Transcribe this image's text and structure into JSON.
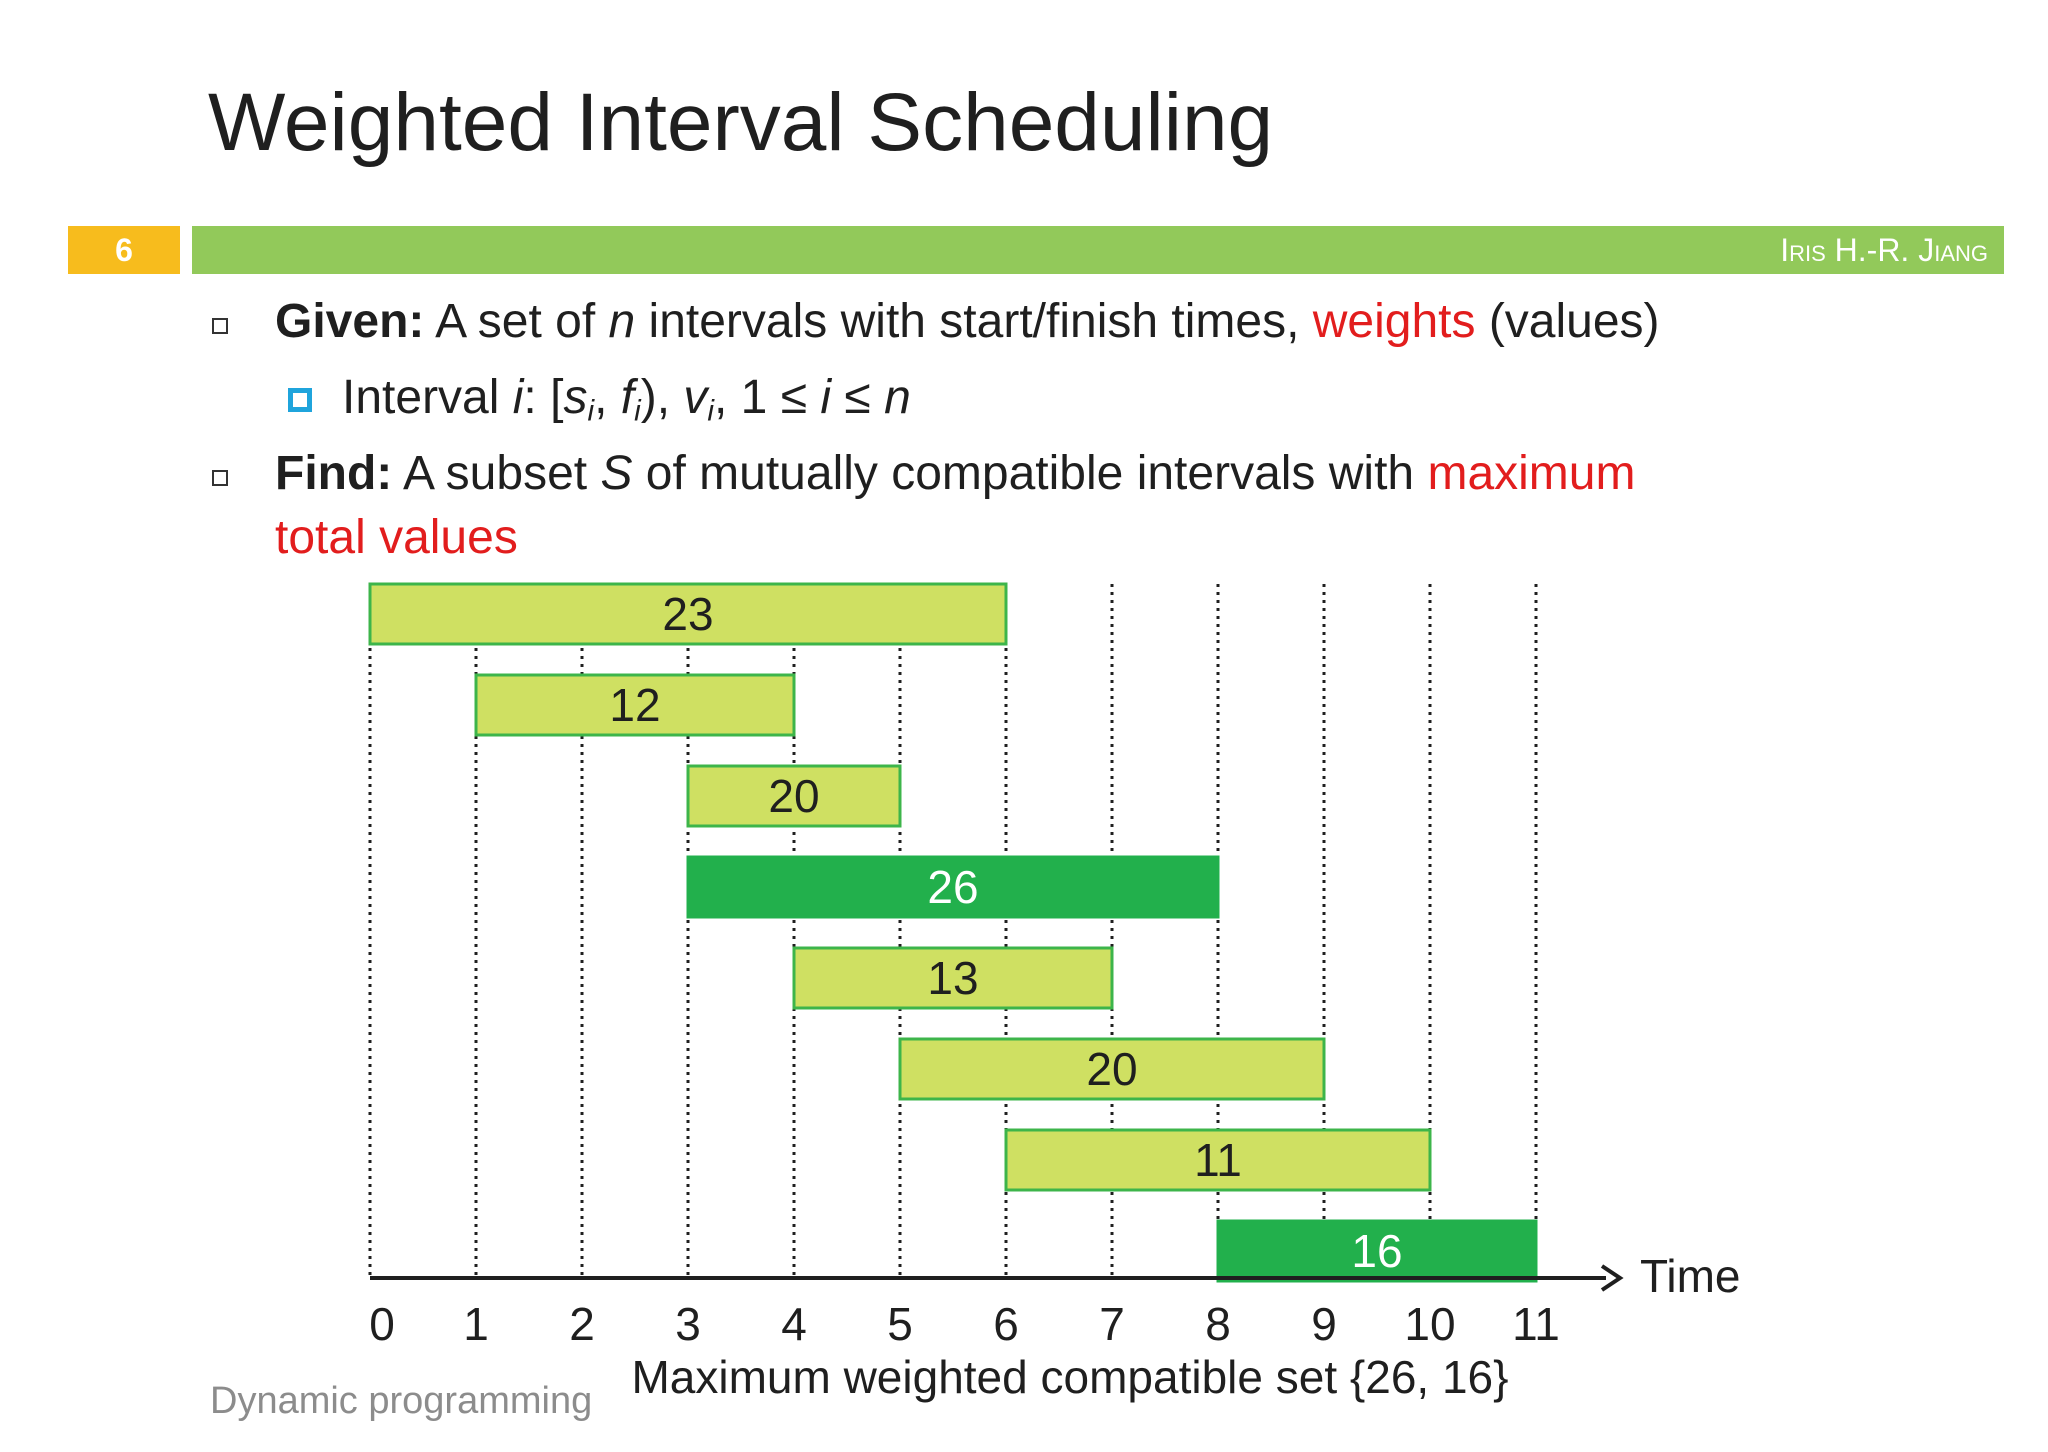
{
  "slide": {
    "title": "Weighted Interval Scheduling",
    "number": "6",
    "author": "Iris H.-R. Jiang",
    "footer": "Dynamic programming"
  },
  "bullets": {
    "given_label": "Given:",
    "given_text_1": " A set of ",
    "given_n": "n",
    "given_text_2": " intervals with start/finish times, ",
    "given_weights": "weights",
    "given_text_3": " (values)",
    "sub_interval": "Interval ",
    "sub_i": "i",
    "sub_colon": ": [",
    "sub_s": "s",
    "sub_si": "i",
    "sub_comma": ", ",
    "sub_f": "f",
    "sub_fi": "i",
    "sub_close": "), ",
    "sub_v": "v",
    "sub_vi": "i",
    "sub_cond": ", 1 ≤ ",
    "sub_cond_i": "i",
    "sub_cond_le": " ≤ ",
    "sub_cond_n": "n",
    "find_label": "Find:",
    "find_text_1": " A subset ",
    "find_S": "S",
    "find_text_2": " of mutually compatible intervals with ",
    "find_max": "maximum",
    "find_total": "total values"
  },
  "chart_data": {
    "type": "bar",
    "orientation": "horizontal-intervals",
    "xlabel": "Time",
    "xlim": [
      0,
      11
    ],
    "x_ticks": [
      "0",
      "1",
      "2",
      "3",
      "4",
      "5",
      "6",
      "7",
      "8",
      "9",
      "10",
      "11"
    ],
    "grid": "vertical dotted lines at each integer time",
    "intervals": [
      {
        "start": 0,
        "finish": 6,
        "value": "23",
        "selected": false
      },
      {
        "start": 1,
        "finish": 4,
        "value": "12",
        "selected": false
      },
      {
        "start": 3,
        "finish": 5,
        "value": "20",
        "selected": false
      },
      {
        "start": 3,
        "finish": 8,
        "value": "26",
        "selected": true
      },
      {
        "start": 4,
        "finish": 7,
        "value": "13",
        "selected": false
      },
      {
        "start": 5,
        "finish": 9,
        "value": "20",
        "selected": false
      },
      {
        "start": 6,
        "finish": 10,
        "value": "11",
        "selected": false
      },
      {
        "start": 8,
        "finish": 11,
        "value": "16",
        "selected": true
      }
    ],
    "caption": "Maximum weighted compatible set {26, 16}",
    "colors": {
      "unselected_fill": "#cfe062",
      "unselected_border": "#3db54a",
      "selected_fill": "#22b04c",
      "selected_text": "#ffffff"
    }
  }
}
